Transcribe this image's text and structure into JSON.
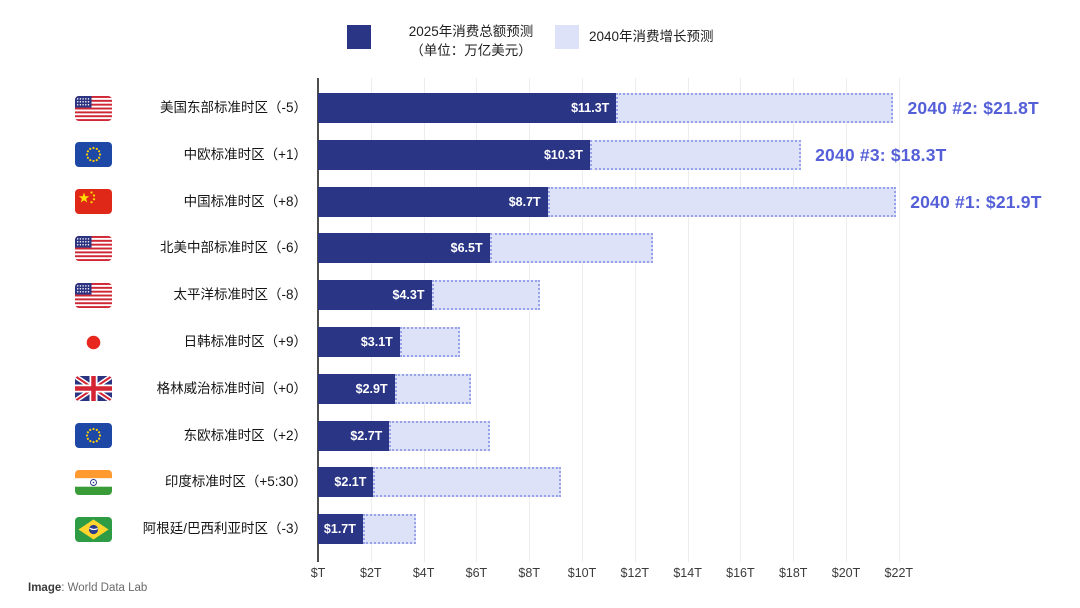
{
  "legend": {
    "items": [
      {
        "swatch": "solid-2025",
        "label_line1": "2025年消费总额预测",
        "label_line2": "（单位：万亿美元）"
      },
      {
        "swatch": "light-2040",
        "label": "2040年消费增长预测"
      }
    ]
  },
  "colors": {
    "bar_2025": "#2a3585",
    "bar_2040_fill": "#dee2f9",
    "bar_2040_border": "#98a2eb",
    "annotation_blue": "#5560d8",
    "axis": "#4d4d4d",
    "grid": "#ededed"
  },
  "chart_data": {
    "type": "bar",
    "orientation": "horizontal",
    "unit": "trillion USD ($T)",
    "legend_position": "top",
    "grid": "vertical",
    "xlim": [
      0,
      22
    ],
    "series_names": [
      "2025年消费总额预测",
      "2040年消费增长预测"
    ],
    "rows": [
      {
        "flag": "us",
        "label": "美国东部标准时区（-5）",
        "value_2025": 11.3,
        "value_label": "$11.3T",
        "total_2040": 21.8,
        "annotation": "2040 #2: $21.8T"
      },
      {
        "flag": "eu",
        "label": "中欧标准时区（+1）",
        "value_2025": 10.3,
        "value_label": "$10.3T",
        "total_2040": 18.3,
        "annotation": "2040 #3: $18.3T"
      },
      {
        "flag": "cn",
        "label": "中国标准时区（+8）",
        "value_2025": 8.7,
        "value_label": "$8.7T",
        "total_2040": 21.9,
        "annotation": "2040 #1: $21.9T"
      },
      {
        "flag": "us",
        "label": "北美中部标准时区（-6）",
        "value_2025": 6.5,
        "value_label": "$6.5T",
        "total_2040": 12.7,
        "annotation": null
      },
      {
        "flag": "us",
        "label": "太平洋标准时区（-8）",
        "value_2025": 4.3,
        "value_label": "$4.3T",
        "total_2040": 8.4,
        "annotation": null
      },
      {
        "flag": "jp",
        "label": "日韩标准时区（+9）",
        "value_2025": 3.1,
        "value_label": "$3.1T",
        "total_2040": 5.4,
        "annotation": null
      },
      {
        "flag": "gb",
        "label": "格林威治标准时间（+0）",
        "value_2025": 2.9,
        "value_label": "$2.9T",
        "total_2040": 5.8,
        "annotation": null
      },
      {
        "flag": "eu",
        "label": "东欧标准时区（+2）",
        "value_2025": 2.7,
        "value_label": "$2.7T",
        "total_2040": 6.5,
        "annotation": null
      },
      {
        "flag": "in",
        "label": "印度标准时区（+5:30）",
        "value_2025": 2.1,
        "value_label": "$2.1T",
        "total_2040": 9.2,
        "annotation": null
      },
      {
        "flag": "br",
        "label": "阿根廷/巴西利亚时区（-3）",
        "value_2025": 1.7,
        "value_label": "$1.7T",
        "total_2040": 3.7,
        "annotation": null
      }
    ],
    "x_axis": {
      "ticks": [
        {
          "value": 0,
          "label": "$T"
        },
        {
          "value": 2,
          "label": "$2T"
        },
        {
          "value": 4,
          "label": "$4T"
        },
        {
          "value": 6,
          "label": "$6T"
        },
        {
          "value": 8,
          "label": "$8T"
        },
        {
          "value": 10,
          "label": "$10T"
        },
        {
          "value": 12,
          "label": "$12T"
        },
        {
          "value": 14,
          "label": "$14T"
        },
        {
          "value": 16,
          "label": "$16T"
        },
        {
          "value": 18,
          "label": "$18T"
        },
        {
          "value": 20,
          "label": "$20T"
        },
        {
          "value": 22,
          "label": "$22T"
        }
      ]
    }
  },
  "footer": {
    "label": "Image",
    "source": ": World Data Lab"
  }
}
